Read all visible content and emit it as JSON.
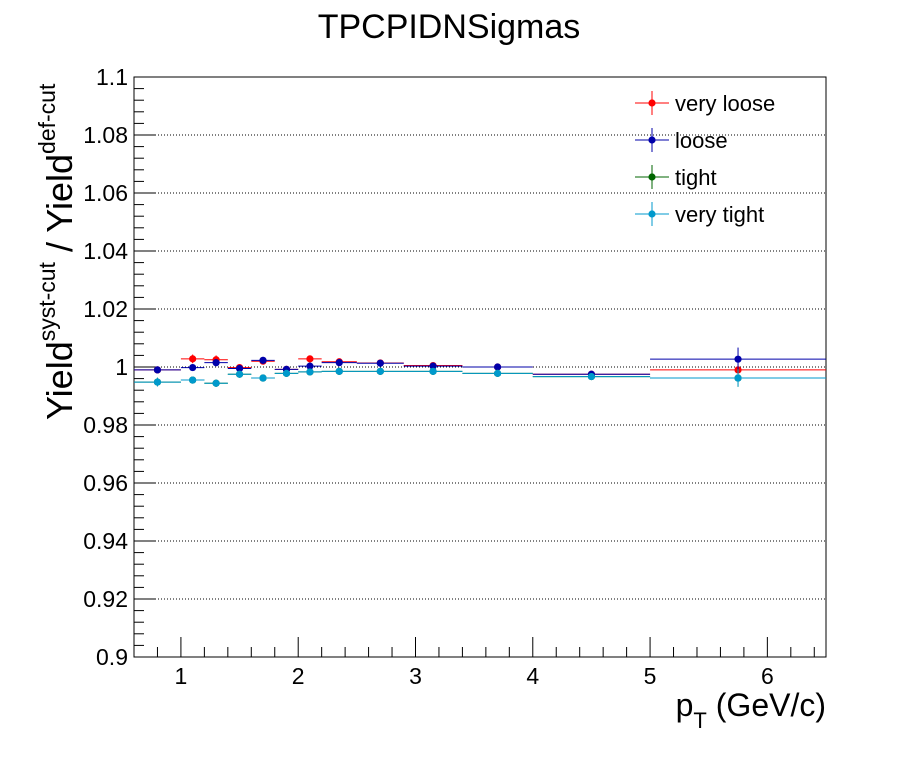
{
  "chart_data": {
    "type": "scatter",
    "title": "TPCPIDNSigmas",
    "xlabel": {
      "main": "p",
      "sub": "T",
      "unit": " (GeV/c)"
    },
    "ylabel": {
      "p1": "Yield",
      "sup1": "syst-cut",
      "p2": " / Yield",
      "sup2": "def-cut"
    },
    "xlim": [
      0.6,
      6.5
    ],
    "ylim": [
      0.9,
      1.1
    ],
    "xticks": [
      1,
      2,
      3,
      4,
      5,
      6
    ],
    "xtick_labels": [
      "1",
      "2",
      "3",
      "4",
      "5",
      "6"
    ],
    "yticks": [
      0.9,
      0.92,
      0.94,
      0.96,
      0.98,
      1.0,
      1.02,
      1.04,
      1.06,
      1.08,
      1.1
    ],
    "ytick_labels": [
      "0.9",
      "0.92",
      "0.94",
      "0.96",
      "0.98",
      "1",
      "1.02",
      "1.04",
      "1.06",
      "1.08",
      "1.1"
    ],
    "grid": "horizontal-dotted",
    "legend_position": "top-right",
    "bins": [
      {
        "lo": 0.6,
        "hi": 1.0
      },
      {
        "lo": 1.0,
        "hi": 1.2
      },
      {
        "lo": 1.2,
        "hi": 1.4
      },
      {
        "lo": 1.4,
        "hi": 1.6
      },
      {
        "lo": 1.6,
        "hi": 1.8
      },
      {
        "lo": 1.8,
        "hi": 2.0
      },
      {
        "lo": 2.0,
        "hi": 2.2
      },
      {
        "lo": 2.2,
        "hi": 2.5
      },
      {
        "lo": 2.5,
        "hi": 2.9
      },
      {
        "lo": 2.9,
        "hi": 3.4
      },
      {
        "lo": 3.4,
        "hi": 4.0
      },
      {
        "lo": 4.0,
        "hi": 5.0
      },
      {
        "lo": 5.0,
        "hi": 6.5
      }
    ],
    "series": [
      {
        "name": "very loose",
        "color": "#ff0000",
        "x": [
          0.8,
          1.1,
          1.3,
          1.5,
          1.7,
          1.9,
          2.1,
          2.35,
          2.7,
          3.15,
          3.7,
          4.5,
          5.75
        ],
        "y": [
          0.999,
          1.0028,
          1.0025,
          0.9998,
          1.002,
          0.9992,
          1.0028,
          1.0018,
          1.0014,
          1.0005,
          1.0,
          0.9975,
          0.999
        ],
        "yerr": [
          0.001,
          0.0015,
          0.0015,
          0.001,
          0.001,
          0.001,
          0.001,
          0.001,
          0.0008,
          0.0008,
          0.0008,
          0.001,
          0.002
        ]
      },
      {
        "name": "loose",
        "color": "#0000aa",
        "x": [
          0.8,
          1.1,
          1.3,
          1.5,
          1.7,
          1.9,
          2.1,
          2.35,
          2.7,
          3.15,
          3.7,
          4.5,
          5.75
        ],
        "y": [
          0.999,
          0.9998,
          1.0015,
          0.9995,
          1.0023,
          0.9992,
          1.0003,
          1.0015,
          1.0013,
          1.0003,
          1.0,
          0.9975,
          1.0027
        ],
        "yerr": [
          0.001,
          0.001,
          0.0012,
          0.001,
          0.0012,
          0.001,
          0.001,
          0.001,
          0.0008,
          0.0008,
          0.0008,
          0.001,
          0.004
        ]
      },
      {
        "name": "tight",
        "color": "#006600",
        "x": [
          0.8,
          1.1,
          1.3,
          1.5,
          1.7,
          1.9,
          2.1,
          2.35,
          2.7,
          3.15,
          3.7,
          4.5,
          5.75
        ],
        "y": [
          0.9948,
          0.9955,
          0.9944,
          0.9975,
          0.9962,
          0.9978,
          0.9983,
          0.9985,
          0.9985,
          0.9985,
          0.9978,
          0.9967,
          0.9962
        ],
        "yerr": [
          0.0015,
          0.0012,
          0.0012,
          0.001,
          0.001,
          0.001,
          0.001,
          0.0008,
          0.0008,
          0.0008,
          0.0008,
          0.0012,
          0.003
        ]
      },
      {
        "name": "very tight",
        "color": "#0099cc",
        "x": [
          0.8,
          1.1,
          1.3,
          1.5,
          1.7,
          1.9,
          2.1,
          2.35,
          2.7,
          3.15,
          3.7,
          4.5,
          5.75
        ],
        "y": [
          0.9948,
          0.9955,
          0.9944,
          0.9975,
          0.9962,
          0.9978,
          0.9983,
          0.9985,
          0.9985,
          0.9985,
          0.9978,
          0.9967,
          0.9962
        ],
        "yerr": [
          0.0015,
          0.0012,
          0.0012,
          0.001,
          0.001,
          0.001,
          0.001,
          0.0008,
          0.0008,
          0.0008,
          0.0008,
          0.0012,
          0.003
        ]
      }
    ]
  }
}
